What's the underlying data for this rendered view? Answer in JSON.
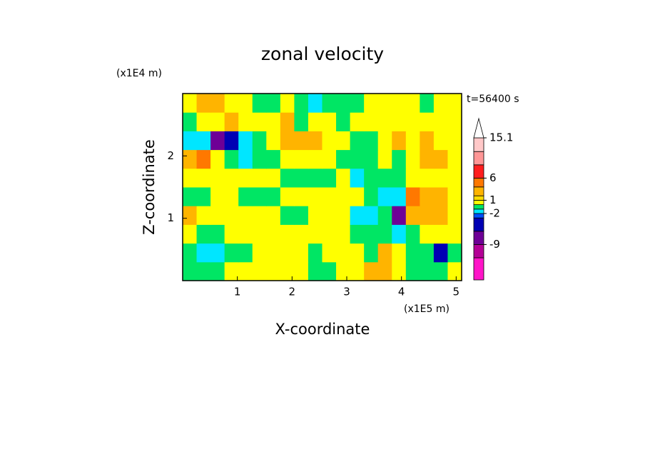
{
  "chart_data": {
    "type": "contour",
    "title": "zonal velocity",
    "xlabel": "X-coordinate",
    "ylabel": "Z-coordinate",
    "x_unit": "(x1E5 m)",
    "y_unit": "(x1E4 m)",
    "annotation": "t=56400 s",
    "xlim": [
      0,
      5.1
    ],
    "ylim": [
      0,
      3
    ],
    "xticks": [
      1,
      2,
      3,
      4,
      5
    ],
    "yticks": [
      1,
      2
    ],
    "x": [
      0.13,
      0.38,
      0.64,
      0.89,
      1.15,
      1.4,
      1.66,
      1.91,
      2.17,
      2.42,
      2.68,
      2.93,
      3.19,
      3.44,
      3.7,
      3.95,
      4.21,
      4.46,
      4.72,
      4.97
    ],
    "y": [
      0.15,
      0.45,
      0.75,
      1.05,
      1.35,
      1.65,
      1.95,
      2.25,
      2.55,
      2.85
    ],
    "z": [
      [
        -0.5,
        -0.5,
        -0.5,
        0.5,
        0.5,
        0.5,
        0.5,
        0.5,
        0.5,
        -0.5,
        -0.5,
        0.5,
        0.5,
        3,
        3,
        0.5,
        -0.5,
        -0.5,
        -0.5,
        0.5
      ],
      [
        -0.5,
        -1.5,
        -1.5,
        -0.5,
        -0.5,
        0.5,
        0.5,
        0.5,
        0.5,
        -0.5,
        0.5,
        0.5,
        0.5,
        -0.5,
        3,
        0.5,
        -0.5,
        -0.5,
        -4,
        -0.5
      ],
      [
        0.5,
        -0.5,
        -0.5,
        0.5,
        0.5,
        0.5,
        0.5,
        0.5,
        0.5,
        0.5,
        0.5,
        0.5,
        -0.5,
        -0.5,
        -0.5,
        -1.5,
        -0.5,
        0.5,
        0.5,
        0.5
      ],
      [
        3,
        0.5,
        0.5,
        0.5,
        0.5,
        0.5,
        0.5,
        -0.5,
        -0.5,
        0.5,
        0.5,
        0.5,
        -1.5,
        -1.5,
        -0.5,
        -7,
        3,
        3,
        3,
        0.5
      ],
      [
        -0.5,
        -0.5,
        0.5,
        0.5,
        -0.5,
        -0.5,
        -0.5,
        0.5,
        0.5,
        0.5,
        0.5,
        0.5,
        0.5,
        -0.5,
        -1.5,
        -1.5,
        5,
        3,
        3,
        0.5
      ],
      [
        0.5,
        0.5,
        0.5,
        0.5,
        0.5,
        0.5,
        0.5,
        -0.5,
        -0.5,
        -0.5,
        -0.5,
        0.5,
        -1.5,
        -0.5,
        -0.5,
        -0.5,
        0.5,
        0.5,
        0.5,
        0.5
      ],
      [
        3,
        5,
        0.5,
        -0.5,
        -1.5,
        -0.5,
        -0.5,
        0.5,
        0.5,
        0.5,
        0.5,
        -0.5,
        -0.5,
        -0.5,
        0.5,
        -0.5,
        0.5,
        3,
        3,
        0.5
      ],
      [
        -1.5,
        -1.5,
        -7,
        -4,
        -1.5,
        -0.5,
        0.5,
        3,
        3,
        3,
        0.5,
        0.5,
        -0.5,
        -0.5,
        0.5,
        3,
        0.5,
        3,
        0.5,
        0.5
      ],
      [
        -0.5,
        0.5,
        0.5,
        3,
        0.5,
        0.5,
        0.5,
        3,
        -0.5,
        0.5,
        0.5,
        -0.5,
        0.5,
        0.5,
        0.5,
        0.5,
        0.5,
        0.5,
        0.5,
        0.5
      ],
      [
        0.5,
        3,
        3,
        0.5,
        0.5,
        -0.5,
        -0.5,
        0.5,
        -0.5,
        -1.5,
        -0.5,
        -0.5,
        -0.5,
        0.5,
        0.5,
        0.5,
        0.5,
        -0.5,
        0.5,
        0.5
      ]
    ],
    "levels": [
      -17,
      -12,
      -9,
      -6,
      -3,
      -2,
      -1,
      0,
      1,
      2,
      4,
      6,
      9,
      12,
      15.1
    ],
    "colors": [
      "#ff14c8",
      "#b40096",
      "#6e0096",
      "#0000b4",
      "#0050ff",
      "#00e6ff",
      "#00e664",
      "#ffff00",
      "#ffdc00",
      "#ffb400",
      "#ff7800",
      "#ff1e1e",
      "#ff9696",
      "#ffc8c8"
    ],
    "cbar_ticks": [
      -9,
      -2,
      1,
      6,
      15.1
    ]
  }
}
